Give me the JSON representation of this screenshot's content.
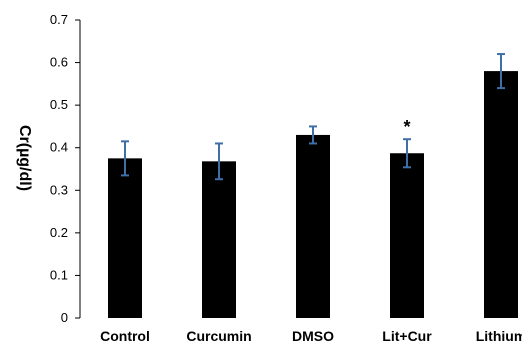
{
  "chart_data": {
    "type": "bar",
    "categories": [
      "Control",
      "Curcumin",
      "DMSO",
      "Lit+Cur",
      "Lithium"
    ],
    "values": [
      0.375,
      0.368,
      0.43,
      0.387,
      0.58
    ],
    "errors": [
      0.04,
      0.042,
      0.02,
      0.033,
      0.04
    ],
    "annotations": [
      "",
      "",
      "",
      "*",
      ""
    ],
    "ylabel": "Cr(µg/dl)",
    "ylim": [
      0,
      0.7
    ],
    "yticks": [
      "0",
      "0.1",
      "0.2",
      "0.3",
      "0.4",
      "0.5",
      "0.6",
      "0.7"
    ],
    "grid": false,
    "colors": {
      "bar": "#000000",
      "error_bar": "#3f6fa6",
      "axis": "#000000"
    }
  }
}
